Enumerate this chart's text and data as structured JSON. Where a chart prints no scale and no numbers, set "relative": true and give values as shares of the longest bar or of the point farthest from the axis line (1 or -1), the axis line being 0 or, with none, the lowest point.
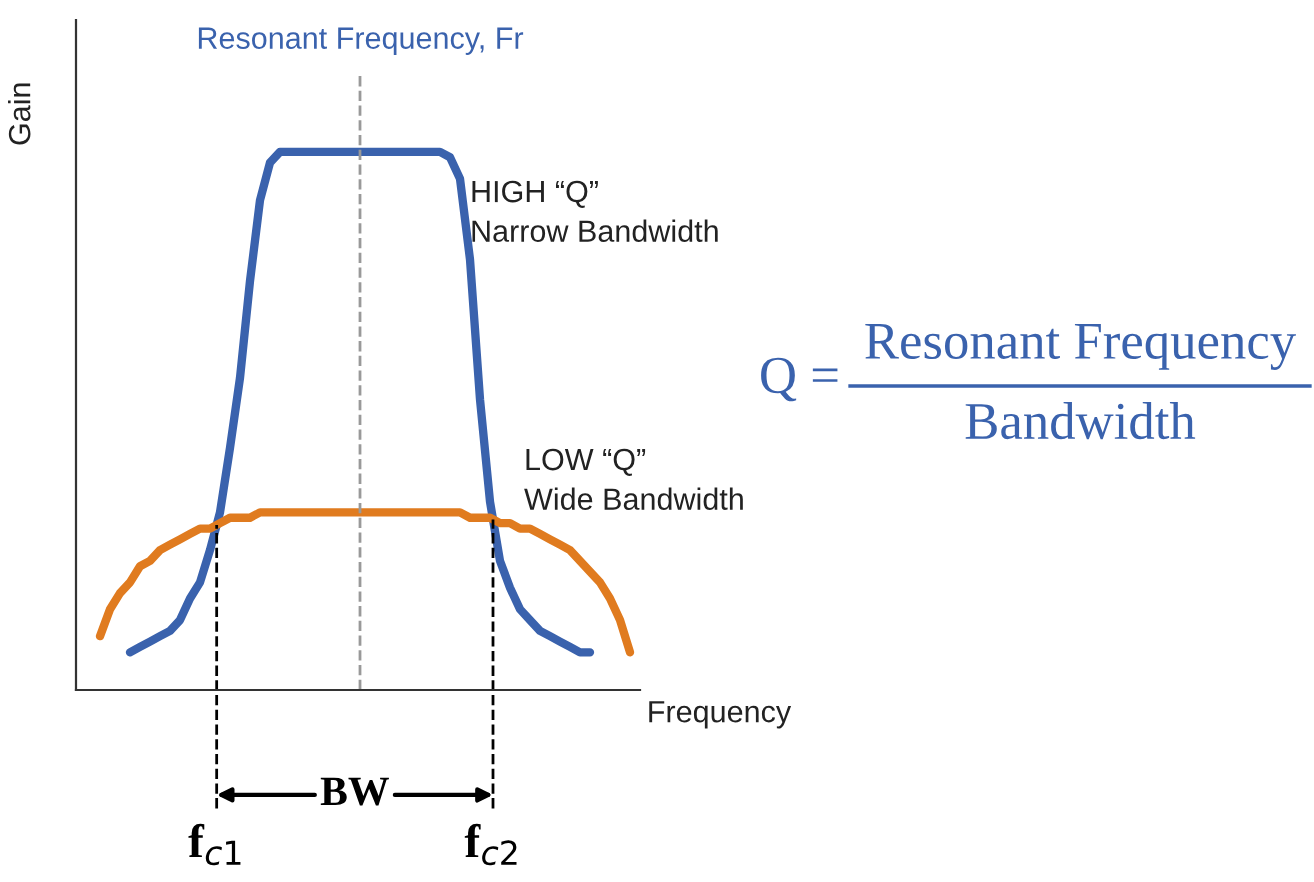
{
  "chart_data": {
    "type": "line",
    "relative": true,
    "xlabel": "Frequency",
    "ylabel": "Gain",
    "categories": [
      null,
      null,
      null,
      null,
      null,
      null,
      null,
      null,
      null,
      null,
      null,
      null,
      null,
      null,
      null,
      null,
      null,
      null,
      null,
      null,
      null,
      null,
      null,
      null,
      null,
      null,
      null,
      null,
      null,
      null,
      null,
      null,
      null,
      null,
      null,
      null,
      null,
      null,
      null,
      null,
      null,
      null,
      null,
      null,
      null,
      null,
      null,
      null,
      null,
      null,
      null,
      null,
      null,
      null,
      null,
      null
    ],
    "series": [
      {
        "color": "#3a62ad",
        "values": [
          null,
          null,
          null,
          null,
          0.07,
          0.08,
          0.09,
          0.1,
          0.11,
          0.13,
          0.17,
          0.2,
          0.26,
          0.33,
          0.45,
          0.58,
          0.76,
          0.91,
          0.98,
          1,
          1,
          1,
          1,
          1,
          1,
          1,
          1,
          1,
          1,
          1,
          1,
          1,
          1,
          1,
          1,
          1,
          0.99,
          0.95,
          0.8,
          0.54,
          0.35,
          0.24,
          0.19,
          0.15,
          0.13,
          0.11,
          0.1,
          0.09,
          0.08,
          0.07,
          0.07,
          null,
          null,
          null,
          null,
          null
        ]
      },
      {
        "color": "#e07b1f",
        "values": [
          null,
          0.1,
          0.15,
          0.18,
          0.2,
          0.23,
          0.24,
          0.26,
          0.27,
          0.28,
          0.29,
          0.3,
          0.3,
          0.31,
          0.32,
          0.32,
          0.32,
          0.33,
          0.33,
          0.33,
          0.33,
          0.33,
          0.33,
          0.33,
          0.33,
          0.33,
          0.33,
          0.33,
          0.33,
          0.33,
          0.33,
          0.33,
          0.33,
          0.33,
          0.33,
          0.33,
          0.33,
          0.33,
          0.32,
          0.32,
          0.32,
          0.31,
          0.31,
          0.3,
          0.3,
          0.29,
          0.28,
          0.27,
          0.26,
          0.24,
          0.22,
          0.2,
          0.17,
          0.13,
          0.07,
          null
        ]
      }
    ],
    "annotations": [
      "HIGH “Q”\nNarrow Bandwidth",
      "LOW “Q”\nWide Bandwidth",
      "Q =",
      "Resonant Frequency",
      "Bandwidth",
      "BW",
      "Resonant Frequency, Fr",
      "f$_{c1}$",
      "f$_{c2}$"
    ]
  }
}
